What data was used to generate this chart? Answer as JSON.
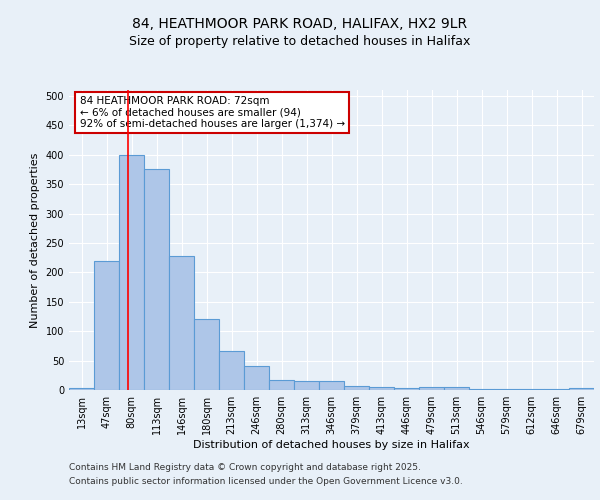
{
  "title_line1": "84, HEATHMOOR PARK ROAD, HALIFAX, HX2 9LR",
  "title_line2": "Size of property relative to detached houses in Halifax",
  "xlabel": "Distribution of detached houses by size in Halifax",
  "ylabel": "Number of detached properties",
  "categories": [
    "13sqm",
    "47sqm",
    "80sqm",
    "113sqm",
    "146sqm",
    "180sqm",
    "213sqm",
    "246sqm",
    "280sqm",
    "313sqm",
    "346sqm",
    "379sqm",
    "413sqm",
    "446sqm",
    "479sqm",
    "513sqm",
    "546sqm",
    "579sqm",
    "612sqm",
    "646sqm",
    "679sqm"
  ],
  "values": [
    3,
    220,
    400,
    375,
    228,
    120,
    67,
    40,
    17,
    15,
    15,
    7,
    5,
    3,
    5,
    5,
    1,
    1,
    1,
    1,
    3
  ],
  "bar_color": "#aec6e8",
  "bar_edge_color": "#5b9bd5",
  "bar_edge_width": 0.8,
  "red_line_x": 1.85,
  "ylim": [
    0,
    510
  ],
  "yticks": [
    0,
    50,
    100,
    150,
    200,
    250,
    300,
    350,
    400,
    450,
    500
  ],
  "annotation_text": "84 HEATHMOOR PARK ROAD: 72sqm\n← 6% of detached houses are smaller (94)\n92% of semi-detached houses are larger (1,374) →",
  "annotation_box_color": "#ffffff",
  "annotation_box_edge": "#cc0000",
  "footer_line1": "Contains HM Land Registry data © Crown copyright and database right 2025.",
  "footer_line2": "Contains public sector information licensed under the Open Government Licence v3.0.",
  "background_color": "#e8f0f8",
  "plot_bg_color": "#e8f0f8",
  "grid_color": "#ffffff",
  "title_fontsize": 10,
  "subtitle_fontsize": 9,
  "axis_label_fontsize": 8,
  "tick_fontsize": 7,
  "annotation_fontsize": 7.5,
  "footer_fontsize": 6.5
}
